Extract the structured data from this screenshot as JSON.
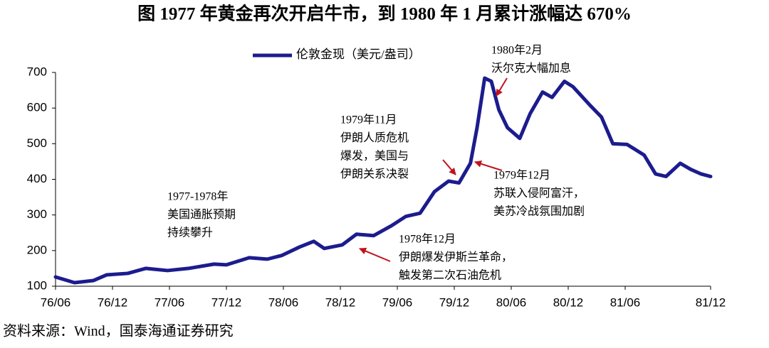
{
  "chart_data": {
    "type": "line",
    "title": "图 1977 年黄金再次开启牛市，到 1980 年 1 月累计涨幅达 670%",
    "source": "资料来源：Wind，国泰海通证券研究",
    "series": [
      {
        "name": "伦敦金现（美元/盎司）",
        "color": "#1c1c8e",
        "x": [
          0,
          2,
          4,
          5.4,
          7.6,
          9.5,
          11.8,
          14,
          16.7,
          18,
          20.4,
          22.3,
          23.8,
          25.7,
          27.2,
          28.3,
          30.2,
          31.7,
          33.5,
          35.4,
          36.9,
          38.4,
          39.9,
          41.4,
          42.5,
          43.7,
          44.4,
          45.2,
          45.9,
          46.7,
          47.6,
          48.9,
          50,
          51.3,
          52.3,
          53.6,
          54.5,
          56.4,
          57.5,
          58.7,
          60.2,
          62,
          63.2,
          64.3,
          65.8,
          66.9,
          68,
          69
        ],
        "values": [
          126,
          110,
          116,
          132,
          136,
          150,
          144,
          150,
          162,
          160,
          180,
          176,
          186,
          210,
          226,
          206,
          216,
          246,
          242,
          270,
          296,
          305,
          365,
          395,
          390,
          445,
          545,
          684,
          675,
          595,
          545,
          515,
          585,
          645,
          630,
          675,
          660,
          605,
          575,
          500,
          498,
          468,
          415,
          408,
          445,
          428,
          415,
          408
        ]
      }
    ],
    "xlim": [
      0,
      69
    ],
    "xticks": [
      {
        "value": 0,
        "label": "76/06"
      },
      {
        "value": 6,
        "label": "76/12"
      },
      {
        "value": 12,
        "label": "77/06"
      },
      {
        "value": 18,
        "label": "77/12"
      },
      {
        "value": 24,
        "label": "78/06"
      },
      {
        "value": 30,
        "label": "78/12"
      },
      {
        "value": 36,
        "label": "79/06"
      },
      {
        "value": 42,
        "label": "79/12"
      },
      {
        "value": 48,
        "label": "80/06"
      },
      {
        "value": 54,
        "label": "80/12"
      },
      {
        "value": 60,
        "label": "81/06"
      },
      {
        "value": 69,
        "label": "81/12"
      }
    ],
    "ylim": [
      100,
      700
    ],
    "yticks": [
      100,
      200,
      300,
      400,
      500,
      600,
      700
    ],
    "annotations": [
      {
        "lines": [
          "1977-1978年",
          "美国通胀预期",
          "持续攀升"
        ]
      },
      {
        "lines": [
          "1978年12月",
          "伊朗爆发伊斯兰革命，",
          "触发第二次石油危机"
        ]
      },
      {
        "lines": [
          "1979年11月",
          "伊朗人质危机",
          "爆发，美国与",
          "伊朗关系决裂"
        ]
      },
      {
        "lines": [
          "1979年12月",
          "苏联入侵阿富汗，",
          "美苏冷战氛围加剧"
        ]
      },
      {
        "lines": [
          "1980年2月",
          "沃尔克大幅加息"
        ]
      }
    ]
  }
}
